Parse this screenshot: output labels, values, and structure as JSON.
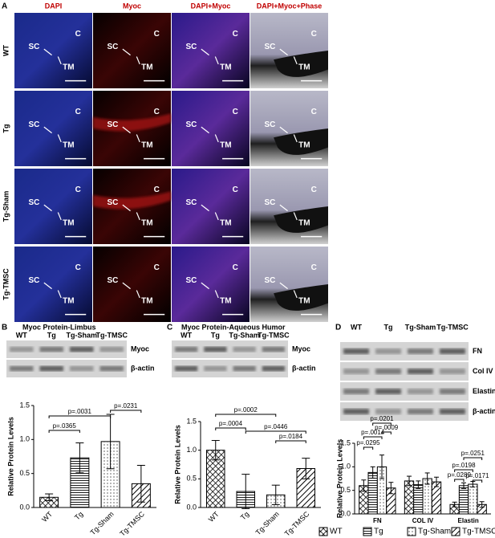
{
  "panel_labels": [
    "A",
    "B",
    "C",
    "D"
  ],
  "panel_a": {
    "columns": [
      "DAPI",
      "Myoc",
      "DAPI+Myoc",
      "DAPI+Myoc+Phase"
    ],
    "rows": [
      "WT",
      "Tg",
      "Tg-Sham",
      "Tg-TMSC"
    ],
    "marks": {
      "c": "C",
      "sc": "SC",
      "tm": "TM"
    }
  },
  "blots": [
    {
      "lanes": [
        "WT",
        "Tg",
        "Tg-Sham",
        "Tg-TMSC"
      ],
      "bands": [
        "Myoc",
        "β-actin"
      ]
    },
    {
      "lanes": [
        "WT",
        "Tg",
        "Tg-Sham",
        "Tg-TMSC"
      ],
      "bands": [
        "Myoc",
        "β-actin"
      ]
    },
    {
      "lanes": [
        "WT",
        "Tg",
        "Tg-Sham",
        "Tg-TMSC"
      ],
      "bands": [
        "FN",
        "Col IV",
        "Elastin",
        "β-actin"
      ]
    }
  ],
  "chart_data": [
    {
      "type": "bar",
      "title": "Myoc Protein-Limbus",
      "y_label": "Relative Protein Levels",
      "categories": [
        "WT",
        "Tg",
        "Tg-Sham",
        "Tg-TMSC"
      ],
      "patterns": [
        "crosshatch",
        "hlines",
        "dots",
        "diagonal"
      ],
      "color": "#000000",
      "values": [
        0.15,
        0.73,
        0.97,
        0.35
      ],
      "errors": [
        0.05,
        0.22,
        0.4,
        0.27
      ],
      "ylim": [
        0,
        1.5
      ],
      "yticks": [
        {
          "value": 0,
          "label": "0.0"
        },
        0.5,
        {
          "value": 1,
          "label": "1.0"
        },
        1.5
      ],
      "comparisons": [
        {
          "between": [
            "WT",
            "Tg"
          ],
          "label": "p=.0365"
        },
        {
          "between": [
            "WT",
            "Tg-Sham"
          ],
          "label": "p=.0031"
        },
        {
          "between": [
            "Tg-Sham",
            "Tg-TMSC"
          ],
          "label": "p=.0231"
        }
      ]
    },
    {
      "type": "bar",
      "title": "Myoc Protein-Aqueous Humor",
      "y_label": "Relative Protein Levels",
      "categories": [
        "WT",
        "Tg",
        "Tg-Sham",
        "Tg-TMSC"
      ],
      "patterns": [
        "crosshatch",
        "hlines",
        "dots",
        "diagonal"
      ],
      "color": "#000000",
      "values": [
        1.0,
        0.28,
        0.22,
        0.68
      ],
      "errors": [
        0.17,
        0.3,
        0.17,
        0.18
      ],
      "ylim": [
        0,
        1.5
      ],
      "yticks": [
        {
          "value": 0,
          "label": "0.0"
        },
        0.5,
        {
          "value": 1,
          "label": "1.0"
        },
        1.5
      ],
      "comparisons": [
        {
          "between": [
            "WT",
            "Tg-Sham"
          ],
          "label": "p=.0002"
        },
        {
          "between": [
            "WT",
            "Tg"
          ],
          "label": "p=.0004"
        },
        {
          "between": [
            "Tg",
            "Tg-TMSC"
          ],
          "label": "p=.0446"
        },
        {
          "between": [
            "Tg-Sham",
            "Tg-TMSC"
          ],
          "label": "p=.0184"
        }
      ]
    },
    {
      "type": "grouped_bar",
      "y_label": "Relative Protein Levels",
      "categories": [
        "FN",
        "COL IV",
        "Elastin"
      ],
      "color": "#000000",
      "series": [
        {
          "name": "WT",
          "pattern": "crosshatch",
          "values": [
            0.6,
            0.7,
            0.2
          ],
          "errors": [
            0.12,
            0.1,
            0.05
          ]
        },
        {
          "name": "Tg",
          "pattern": "hlines",
          "values": [
            0.88,
            0.62,
            0.6
          ],
          "errors": [
            0.12,
            0.08,
            0.06
          ]
        },
        {
          "name": "Tg-Sham",
          "pattern": "dots",
          "values": [
            1.0,
            0.75,
            0.63
          ],
          "errors": [
            0.25,
            0.12,
            0.06
          ]
        },
        {
          "name": "Tg-TMSC",
          "pattern": "diagonal",
          "values": [
            0.55,
            0.68,
            0.2
          ],
          "errors": [
            0.12,
            0.1,
            0.06
          ]
        }
      ],
      "ylim": [
        0,
        1.5
      ],
      "yticks": [
        {
          "value": 0,
          "label": "0.0"
        },
        0.5,
        {
          "value": 1,
          "label": "1.0"
        },
        1.5
      ],
      "comparisons": [
        {
          "category": "FN",
          "between": [
            "WT",
            "Tg"
          ],
          "label": "p=.0295"
        },
        {
          "category": "FN",
          "between": [
            "WT",
            "Tg-Sham"
          ],
          "label": "p=.0014"
        },
        {
          "category": "FN",
          "between": [
            "Tg-Sham",
            "Tg-TMSC"
          ],
          "label": "p=.0009"
        },
        {
          "category": "FN",
          "between": [
            "Tg",
            "Tg-TMSC"
          ],
          "label": "p=.0201"
        },
        {
          "category": "Elastin",
          "between": [
            "WT",
            "Tg-Sham"
          ],
          "label": "p=.0198"
        },
        {
          "category": "Elastin",
          "between": [
            "WT",
            "Tg"
          ],
          "label": "p=.0289"
        },
        {
          "category": "Elastin",
          "between": [
            "Tg",
            "Tg-TMSC"
          ],
          "label": "p=.0251"
        },
        {
          "category": "Elastin",
          "between": [
            "Tg-Sham",
            "Tg-TMSC"
          ],
          "label": "p=.0171"
        }
      ]
    }
  ]
}
